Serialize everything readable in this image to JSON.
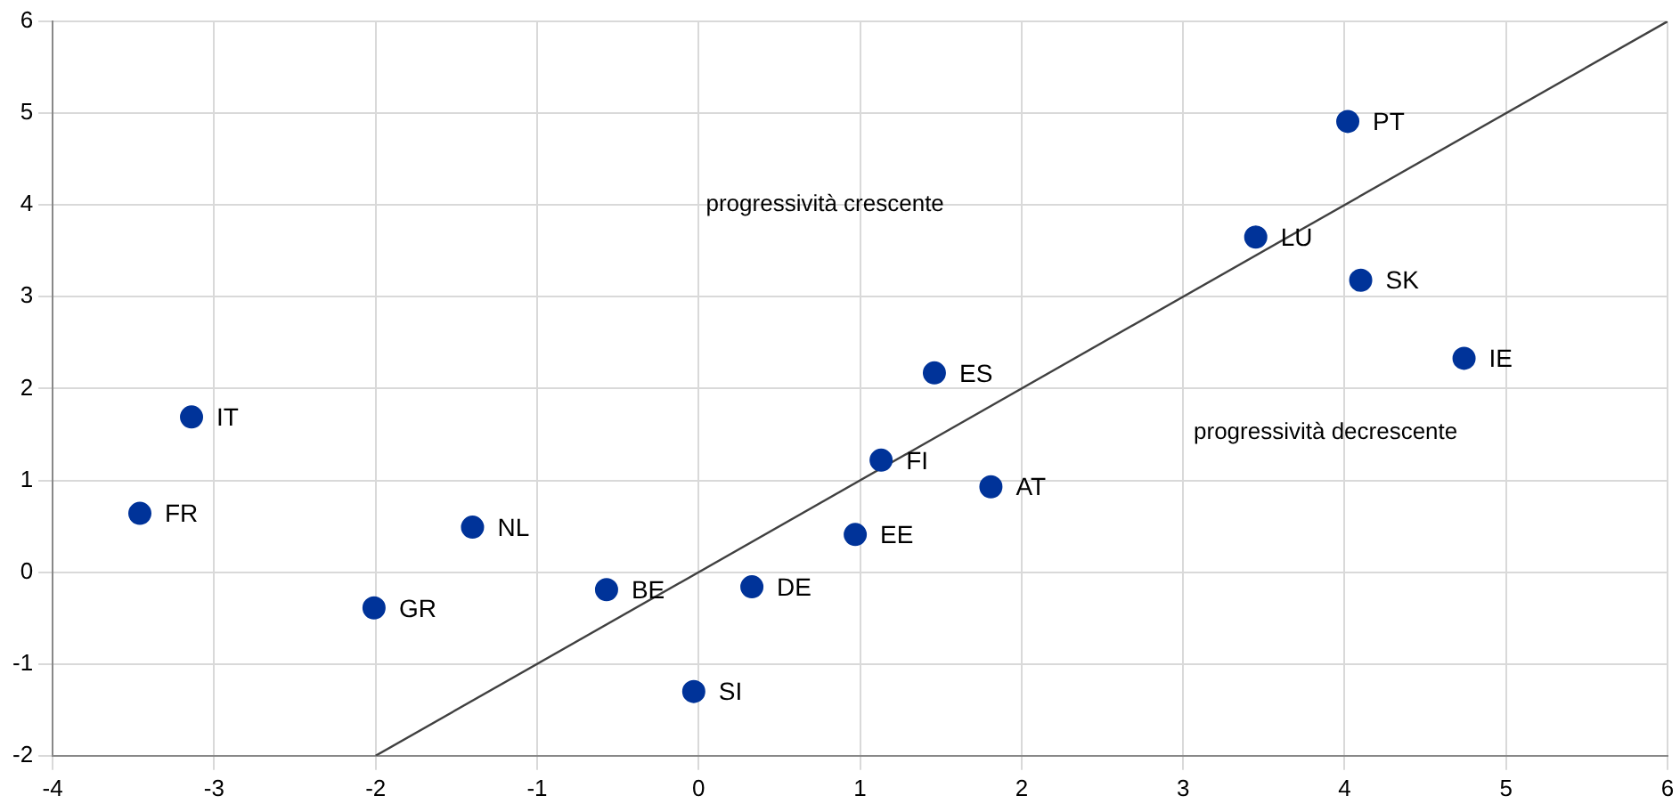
{
  "chart_data": {
    "type": "scatter",
    "x": [
      -3.14,
      -3.46,
      -1.4,
      -2.01,
      -0.57,
      0.33,
      -0.03,
      0.97,
      1.13,
      1.46,
      1.81,
      3.45,
      4.02,
      4.1,
      4.74
    ],
    "series": [
      {
        "color": "#003399",
        "values": [
          1.69,
          0.64,
          0.49,
          -0.39,
          -0.19,
          -0.16,
          -1.3,
          0.41,
          1.22,
          2.17,
          0.93,
          3.65,
          4.91,
          3.18,
          2.33
        ]
      },
      {
        "type": "line",
        "color": "#404040",
        "x": [
          -2,
          6
        ],
        "values": [
          -2,
          6
        ],
        "marker": "none"
      }
    ],
    "xlim": [
      -4,
      6
    ],
    "xticks": [
      -4,
      -3,
      -2,
      -1,
      0,
      1,
      2,
      3,
      4,
      5,
      6
    ],
    "ylim": [
      -2,
      6
    ],
    "yticks": [
      -2,
      -1,
      0,
      1,
      2,
      3,
      4,
      5,
      6
    ],
    "grid": true,
    "legend": false,
    "marker": "circle",
    "line_style": "solid",
    "annotations": [
      {
        "text": "IT",
        "x": -3.14,
        "y": 1.69
      },
      {
        "text": "FR",
        "x": -3.46,
        "y": 0.64
      },
      {
        "text": "NL",
        "x": -1.4,
        "y": 0.49
      },
      {
        "text": "GR",
        "x": -2.01,
        "y": -0.39
      },
      {
        "text": "BE",
        "x": -0.57,
        "y": -0.19
      },
      {
        "text": "DE",
        "x": 0.33,
        "y": -0.16
      },
      {
        "text": "SI",
        "x": -0.03,
        "y": -1.3
      },
      {
        "text": "EE",
        "x": 0.97,
        "y": 0.41
      },
      {
        "text": "FI",
        "x": 1.13,
        "y": 1.22
      },
      {
        "text": "ES",
        "x": 1.46,
        "y": 2.17
      },
      {
        "text": "AT",
        "x": 1.81,
        "y": 0.93
      },
      {
        "text": "LU",
        "x": 3.45,
        "y": 3.65
      },
      {
        "text": "PT",
        "x": 4.02,
        "y": 4.91
      },
      {
        "text": "SK",
        "x": 4.1,
        "y": 3.18
      },
      {
        "text": "IE",
        "x": 4.74,
        "y": 2.33
      },
      "progressività crescente",
      "progressività decrescente"
    ]
  }
}
